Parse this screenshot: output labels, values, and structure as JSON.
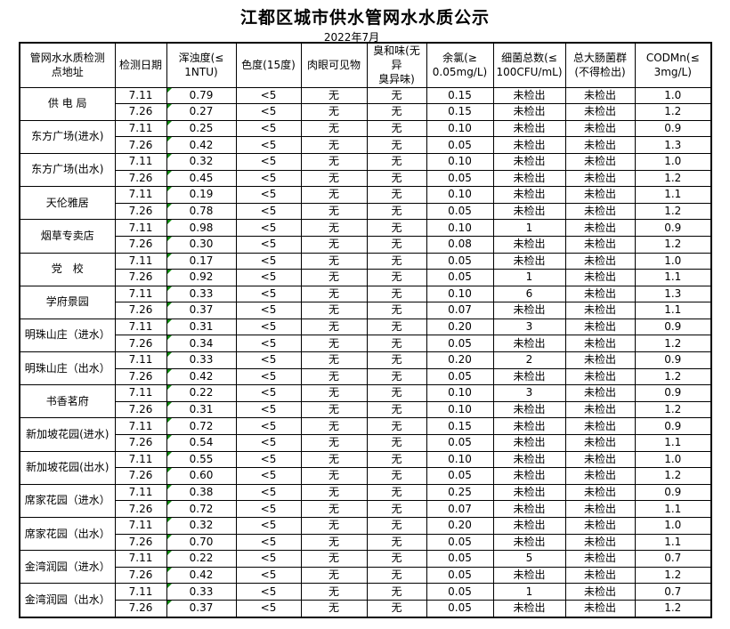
{
  "title": "江都区城市供水管网水水质公示",
  "subtitle": "2022年7月",
  "table": {
    "headers": [
      "管网水水质检测\n点地址",
      "检测日期",
      "浑浊度(≤\n1NTU)",
      "色度(15度)",
      "肉眼可见物",
      "臭和味(无异\n臭异味)",
      "余氯(≥\n0.05mg/L)",
      "细菌总数(≤\n100CFU/mL)",
      "总大肠菌群\n(不得检出)",
      "CODMn(≤\n3mg/L)"
    ],
    "indicator_color": "#0e8a0e",
    "groups": [
      {
        "location": "供 电 局",
        "rows": [
          [
            "7.11",
            "0.79",
            "<5",
            "无",
            "无",
            "0.15",
            "未检出",
            "未检出",
            "1.0"
          ],
          [
            "7.26",
            "0.27",
            "<5",
            "无",
            "无",
            "0.15",
            "未检出",
            "未检出",
            "1.2"
          ]
        ]
      },
      {
        "location": "东方广场(进水)",
        "rows": [
          [
            "7.11",
            "0.25",
            "<5",
            "无",
            "无",
            "0.10",
            "未检出",
            "未检出",
            "0.9"
          ],
          [
            "7.26",
            "0.42",
            "<5",
            "无",
            "无",
            "0.05",
            "未检出",
            "未检出",
            "1.3"
          ]
        ]
      },
      {
        "location": "东方广场(出水)",
        "rows": [
          [
            "7.11",
            "0.32",
            "<5",
            "无",
            "无",
            "0.10",
            "未检出",
            "未检出",
            "1.0"
          ],
          [
            "7.26",
            "0.45",
            "<5",
            "无",
            "无",
            "0.05",
            "未检出",
            "未检出",
            "1.2"
          ]
        ]
      },
      {
        "location": "天伦雅居",
        "rows": [
          [
            "7.11",
            "0.19",
            "<5",
            "无",
            "无",
            "0.10",
            "未检出",
            "未检出",
            "1.1"
          ],
          [
            "7.26",
            "0.78",
            "<5",
            "无",
            "无",
            "0.05",
            "未检出",
            "未检出",
            "1.2"
          ]
        ]
      },
      {
        "location": "烟草专卖店",
        "rows": [
          [
            "7.11",
            "0.98",
            "<5",
            "无",
            "无",
            "0.10",
            "1",
            "未检出",
            "0.9"
          ],
          [
            "7.26",
            "0.30",
            "<5",
            "无",
            "无",
            "0.08",
            "未检出",
            "未检出",
            "1.2"
          ]
        ]
      },
      {
        "location": "党　校",
        "rows": [
          [
            "7.11",
            "0.17",
            "<5",
            "无",
            "无",
            "0.05",
            "未检出",
            "未检出",
            "1.0"
          ],
          [
            "7.26",
            "0.92",
            "<5",
            "无",
            "无",
            "0.05",
            "1",
            "未检出",
            "1.1"
          ]
        ]
      },
      {
        "location": "学府景园",
        "rows": [
          [
            "7.11",
            "0.33",
            "<5",
            "无",
            "无",
            "0.10",
            "6",
            "未检出",
            "1.3"
          ],
          [
            "7.26",
            "0.37",
            "<5",
            "无",
            "无",
            "0.07",
            "未检出",
            "未检出",
            "1.1"
          ]
        ]
      },
      {
        "location": "明珠山庄（进水）",
        "rows": [
          [
            "7.11",
            "0.31",
            "<5",
            "无",
            "无",
            "0.20",
            "3",
            "未检出",
            "0.9"
          ],
          [
            "7.26",
            "0.34",
            "<5",
            "无",
            "无",
            "0.05",
            "未检出",
            "未检出",
            "1.2"
          ]
        ]
      },
      {
        "location": "明珠山庄（出水）",
        "rows": [
          [
            "7.11",
            "0.33",
            "<5",
            "无",
            "无",
            "0.20",
            "2",
            "未检出",
            "0.9"
          ],
          [
            "7.26",
            "0.42",
            "<5",
            "无",
            "无",
            "0.05",
            "未检出",
            "未检出",
            "1.2"
          ]
        ]
      },
      {
        "location": "书香茗府",
        "rows": [
          [
            "7.11",
            "0.22",
            "<5",
            "无",
            "无",
            "0.10",
            "3",
            "未检出",
            "0.9"
          ],
          [
            "7.26",
            "0.31",
            "<5",
            "无",
            "无",
            "0.10",
            "未检出",
            "未检出",
            "1.2"
          ]
        ]
      },
      {
        "location": "新加坡花园(进水)",
        "rows": [
          [
            "7.11",
            "0.72",
            "<5",
            "无",
            "无",
            "0.15",
            "未检出",
            "未检出",
            "0.9"
          ],
          [
            "7.26",
            "0.54",
            "<5",
            "无",
            "无",
            "0.05",
            "未检出",
            "未检出",
            "1.1"
          ]
        ]
      },
      {
        "location": "新加坡花园(出水)",
        "rows": [
          [
            "7.11",
            "0.55",
            "<5",
            "无",
            "无",
            "0.10",
            "未检出",
            "未检出",
            "1.0"
          ],
          [
            "7.26",
            "0.60",
            "<5",
            "无",
            "无",
            "0.05",
            "未检出",
            "未检出",
            "1.2"
          ]
        ]
      },
      {
        "location": "席家花园（进水）",
        "rows": [
          [
            "7.11",
            "0.38",
            "<5",
            "无",
            "无",
            "0.25",
            "未检出",
            "未检出",
            "0.9"
          ],
          [
            "7.26",
            "0.72",
            "<5",
            "无",
            "无",
            "0.07",
            "未检出",
            "未检出",
            "1.1"
          ]
        ]
      },
      {
        "location": "席家花园（出水）",
        "rows": [
          [
            "7.11",
            "0.32",
            "<5",
            "无",
            "无",
            "0.20",
            "未检出",
            "未检出",
            "1.0"
          ],
          [
            "7.26",
            "0.70",
            "<5",
            "无",
            "无",
            "0.05",
            "未检出",
            "未检出",
            "1.1"
          ]
        ]
      },
      {
        "location": "金湾润园（进水）",
        "rows": [
          [
            "7.11",
            "0.22",
            "<5",
            "无",
            "无",
            "0.05",
            "5",
            "未检出",
            "0.7"
          ],
          [
            "7.26",
            "0.42",
            "<5",
            "无",
            "无",
            "0.05",
            "未检出",
            "未检出",
            "1.2"
          ]
        ]
      },
      {
        "location": "金湾润园（出水）",
        "rows": [
          [
            "7.11",
            "0.33",
            "<5",
            "无",
            "无",
            "0.05",
            "1",
            "未检出",
            "0.7"
          ],
          [
            "7.26",
            "0.37",
            "<5",
            "无",
            "无",
            "0.05",
            "未检出",
            "未检出",
            "1.2"
          ]
        ]
      }
    ]
  }
}
